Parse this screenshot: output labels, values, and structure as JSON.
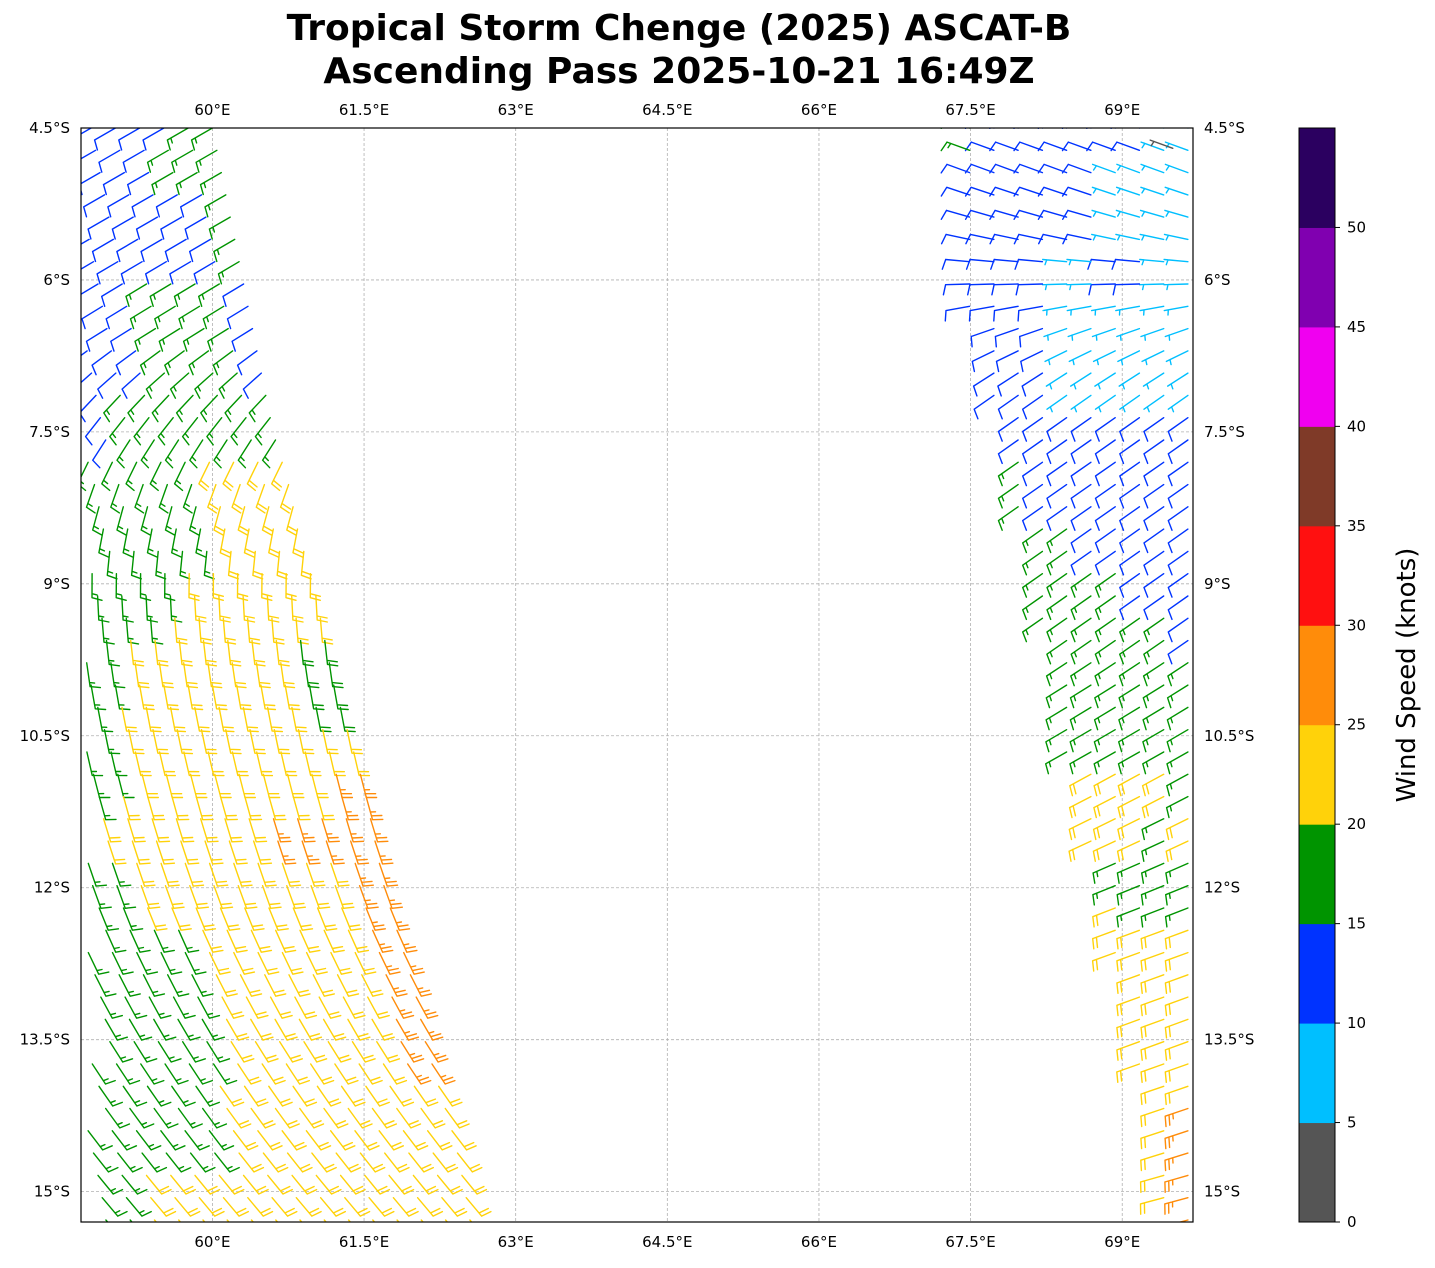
{
  "chart_data": {
    "type": "wind-barbs",
    "title": [
      "Tropical Storm Chenge (2025) ASCAT-B",
      "Ascending Pass 2025-10-21 16:49Z"
    ],
    "xlim": [
      58.7,
      69.7
    ],
    "ylim_south": [
      4.5,
      15.3
    ],
    "x_ticks": [
      60,
      61.5,
      63,
      64.5,
      66,
      67.5,
      69
    ],
    "x_tick_labels": [
      "60°E",
      "61.5°E",
      "63°E",
      "64.5°E",
      "66°E",
      "67.5°E",
      "69°E"
    ],
    "y_ticks": [
      4.5,
      6,
      7.5,
      9,
      10.5,
      12,
      13.5,
      15
    ],
    "y_tick_labels": [
      "4.5°S",
      "6°S",
      "7.5°S",
      "9°S",
      "10.5°S",
      "12°S",
      "13.5°S",
      "15°S"
    ],
    "grid": true,
    "colorbar": {
      "label": "Wind Speed (knots)",
      "bins": [
        {
          "min": 0,
          "max": 5,
          "color": "#555555"
        },
        {
          "min": 5,
          "max": 10,
          "color": "#00bfff"
        },
        {
          "min": 10,
          "max": 15,
          "color": "#0033ff"
        },
        {
          "min": 15,
          "max": 20,
          "color": "#009400"
        },
        {
          "min": 20,
          "max": 25,
          "color": "#ffd20a"
        },
        {
          "min": 25,
          "max": 30,
          "color": "#ff8c0a"
        },
        {
          "min": 30,
          "max": 35,
          "color": "#ff1010"
        },
        {
          "min": 35,
          "max": 40,
          "color": "#7f3a28"
        },
        {
          "min": 40,
          "max": 45,
          "color": "#f000f0"
        },
        {
          "min": 45,
          "max": 50,
          "color": "#8000b0"
        },
        {
          "min": 50,
          "max": 55,
          "color": "#2b0060"
        }
      ],
      "ticks": [
        0,
        5,
        10,
        15,
        20,
        25,
        30,
        35,
        40,
        45,
        50
      ]
    },
    "swaths": [
      {
        "name": "western swath",
        "rows": [
          {
            "lat": 4.5,
            "lon_w": 58.75,
            "lon_e": 60.0,
            "speeds": [
              12,
              12,
              12,
              17,
              17
            ],
            "dir": 240
          },
          {
            "lat": 5.5,
            "lon_w": 58.75,
            "lon_e": 60.2,
            "speeds": [
              12,
              12,
              12,
              12,
              17
            ],
            "dir": 240
          },
          {
            "lat": 6.5,
            "lon_w": 58.75,
            "lon_e": 60.4,
            "speeds": [
              12,
              12,
              17,
              17,
              12
            ],
            "dir": 238
          },
          {
            "lat": 7.5,
            "lon_w": 58.75,
            "lon_e": 60.6,
            "speeds": [
              12,
              17,
              17,
              17,
              17
            ],
            "dir": 215
          },
          {
            "lat": 8.0,
            "lon_w": 58.75,
            "lon_e": 60.75,
            "speeds": [
              17,
              17,
              17,
              22,
              22
            ],
            "dir": 200
          },
          {
            "lat": 8.5,
            "lon_w": 58.75,
            "lon_e": 60.85,
            "speeds": [
              17,
              17,
              17,
              22,
              22
            ],
            "dir": 190
          },
          {
            "lat": 9.0,
            "lon_w": 58.75,
            "lon_e": 61.0,
            "speeds": [
              17,
              17,
              22,
              22,
              22
            ],
            "dir": 178
          },
          {
            "lat": 10.0,
            "lon_w": 58.75,
            "lon_e": 61.2,
            "speeds": [
              17,
              22,
              22,
              22,
              18
            ],
            "dir": 170
          },
          {
            "lat": 10.5,
            "lon_w": 58.75,
            "lon_e": 61.35,
            "speeds": [
              17,
              22,
              22,
              22,
              22
            ],
            "dir": 168
          },
          {
            "lat": 11.0,
            "lon_w": 58.75,
            "lon_e": 61.5,
            "speeds": [
              17,
              22,
              22,
              22,
              27
            ],
            "dir": 165
          },
          {
            "lat": 11.5,
            "lon_w": 58.75,
            "lon_e": 61.6,
            "speeds": [
              22,
              22,
              22,
              27,
              27
            ],
            "dir": 162
          },
          {
            "lat": 12.0,
            "lon_w": 58.75,
            "lon_e": 61.7,
            "speeds": [
              17,
              22,
              22,
              22,
              27
            ],
            "dir": 160
          },
          {
            "lat": 12.5,
            "lon_w": 58.75,
            "lon_e": 61.85,
            "speeds": [
              17,
              17,
              22,
              22,
              27
            ],
            "dir": 155
          },
          {
            "lat": 13.0,
            "lon_w": 58.75,
            "lon_e": 62.0,
            "speeds": [
              17,
              17,
              22,
              22,
              27
            ],
            "dir": 152
          },
          {
            "lat": 13.5,
            "lon_w": 58.75,
            "lon_e": 62.1,
            "speeds": [
              17,
              17,
              22,
              22,
              27
            ],
            "dir": 148
          },
          {
            "lat": 14.0,
            "lon_w": 58.75,
            "lon_e": 62.25,
            "speeds": [
              17,
              17,
              22,
              22,
              22
            ],
            "dir": 145
          },
          {
            "lat": 14.5,
            "lon_w": 58.75,
            "lon_e": 62.4,
            "speeds": [
              17,
              17,
              22,
              22,
              22
            ],
            "dir": 142
          },
          {
            "lat": 15.0,
            "lon_w": 58.75,
            "lon_e": 62.5,
            "speeds": [
              17,
              22,
              22,
              22,
              22
            ],
            "dir": 140
          },
          {
            "lat": 15.3,
            "lon_w": 58.75,
            "lon_e": 62.55,
            "speeds": [
              17,
              22,
              22,
              22,
              22
            ],
            "dir": 140
          }
        ]
      },
      {
        "name": "eastern swath",
        "rows": [
          {
            "lat": 4.5,
            "lon_w": 67.3,
            "lon_e": 69.65,
            "speeds": [
              17,
              12,
              12,
              12,
              7
            ],
            "dir": 290
          },
          {
            "lat": 5.0,
            "lon_w": 67.35,
            "lon_e": 69.65,
            "speeds": [
              12,
              12,
              12,
              7,
              7
            ],
            "dir": 290
          },
          {
            "lat": 5.5,
            "lon_w": 67.4,
            "lon_e": 69.65,
            "speeds": [
              12,
              12,
              12,
              7,
              7
            ],
            "dir": 285
          },
          {
            "lat": 6.0,
            "lon_w": 67.45,
            "lon_e": 69.65,
            "speeds": [
              12,
              12,
              7,
              12,
              7
            ],
            "dir": 270
          },
          {
            "lat": 6.5,
            "lon_w": 67.5,
            "lon_e": 69.65,
            "speeds": [
              12,
              12,
              7,
              7,
              7
            ],
            "dir": 250
          },
          {
            "lat": 7.0,
            "lon_w": 67.65,
            "lon_e": 69.65,
            "speeds": [
              12,
              12,
              7,
              7,
              7
            ],
            "dir": 235
          },
          {
            "lat": 7.5,
            "lon_w": 67.8,
            "lon_e": 69.65,
            "speeds": [
              12,
              12,
              12,
              12,
              12
            ],
            "dir": 235
          },
          {
            "lat": 8.0,
            "lon_w": 67.9,
            "lon_e": 69.65,
            "speeds": [
              17,
              12,
              12,
              12,
              12
            ],
            "dir": 235
          },
          {
            "lat": 8.5,
            "lon_w": 68.0,
            "lon_e": 69.65,
            "speeds": [
              17,
              17,
              12,
              12,
              12
            ],
            "dir": 235
          },
          {
            "lat": 9.0,
            "lon_w": 68.1,
            "lon_e": 69.65,
            "speeds": [
              17,
              17,
              17,
              12,
              12
            ],
            "dir": 235
          },
          {
            "lat": 9.5,
            "lon_w": 68.2,
            "lon_e": 69.65,
            "speeds": [
              17,
              17,
              17,
              17,
              12
            ],
            "dir": 235
          },
          {
            "lat": 10.0,
            "lon_w": 68.3,
            "lon_e": 69.65,
            "speeds": [
              17,
              17,
              17,
              17,
              17
            ],
            "dir": 238
          },
          {
            "lat": 10.5,
            "lon_w": 68.4,
            "lon_e": 69.65,
            "speeds": [
              17,
              17,
              17,
              17,
              17
            ],
            "dir": 240
          },
          {
            "lat": 11.0,
            "lon_w": 68.55,
            "lon_e": 69.65,
            "speeds": [
              22,
              22,
              22,
              22,
              17
            ],
            "dir": 242
          },
          {
            "lat": 11.5,
            "lon_w": 68.65,
            "lon_e": 69.65,
            "speeds": [
              22,
              22,
              22,
              17,
              22
            ],
            "dir": 245
          },
          {
            "lat": 12.0,
            "lon_w": 68.8,
            "lon_e": 69.65,
            "speeds": [
              22,
              17,
              17,
              17,
              17
            ],
            "dir": 248
          },
          {
            "lat": 12.5,
            "lon_w": 68.9,
            "lon_e": 69.65,
            "speeds": [
              22,
              22,
              22,
              22,
              22
            ],
            "dir": 250
          },
          {
            "lat": 13.5,
            "lon_w": 69.1,
            "lon_e": 69.65,
            "speeds": [
              22,
              22,
              22,
              22,
              22
            ],
            "dir": 250
          },
          {
            "lat": 14.5,
            "lon_w": 69.3,
            "lon_e": 69.65,
            "speeds": [
              22,
              22,
              22,
              27
            ],
            "dir": 252
          },
          {
            "lat": 15.0,
            "lon_w": 69.4,
            "lon_e": 69.65,
            "speeds": [
              22,
              22,
              27
            ],
            "dir": 255
          },
          {
            "lat": 15.3,
            "lon_w": 69.45,
            "lon_e": 69.65,
            "speeds": [
              22,
              27
            ],
            "dir": 255
          }
        ]
      }
    ],
    "isolated_obs": [
      {
        "lon": 69.5,
        "lat": 4.7,
        "speed": 3,
        "dir": 290
      }
    ]
  }
}
